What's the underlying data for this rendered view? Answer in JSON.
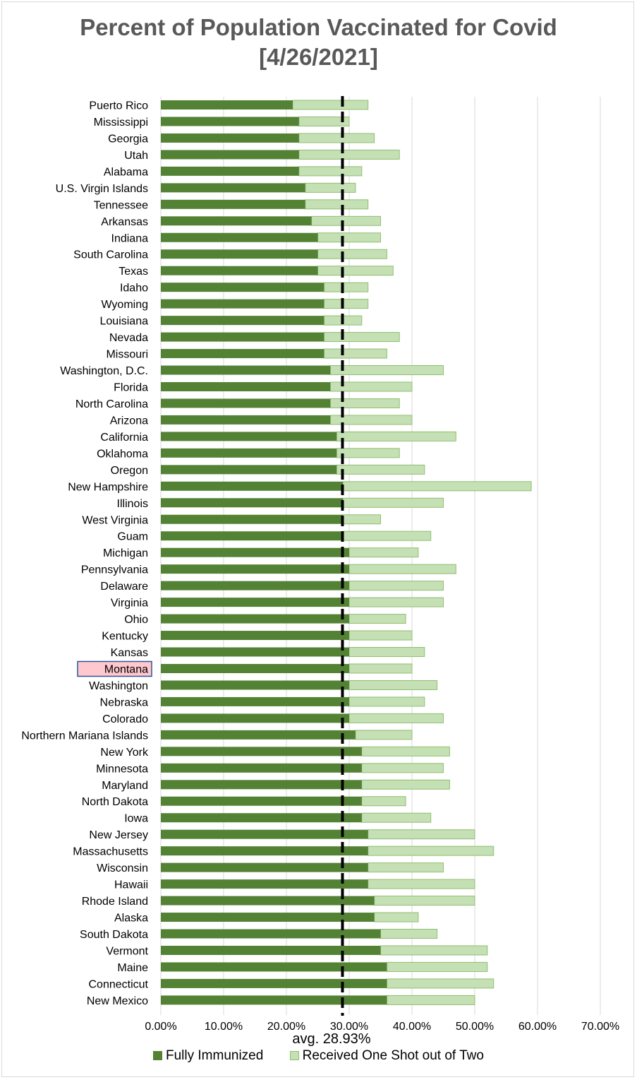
{
  "chart_data": {
    "type": "bar",
    "orientation": "horizontal",
    "stacked": true,
    "title_line1": "Percent of Population Vaccinated for Covid",
    "title_line2": "[4/26/2021]",
    "xlim": [
      0,
      70
    ],
    "x_ticks": [
      "0.00%",
      "10.00%",
      "20.00%",
      "30.00%",
      "40.00%",
      "50.00%",
      "60.00%",
      "70.00%"
    ],
    "x_tick_values": [
      0,
      10,
      20,
      30,
      40,
      50,
      60,
      70
    ],
    "grid": true,
    "legend_position": "bottom",
    "colors": {
      "fully": "#548235",
      "one_shot": "#c5e0b4",
      "one_shot_border": "#8fbf72",
      "highlight_fill": "#ffc7ce",
      "highlight_border": "#2f5597"
    },
    "average": {
      "value": 28.93,
      "label": "avg. 28.93%"
    },
    "highlight": "Montana",
    "series": [
      {
        "name": "Fully Immunized"
      },
      {
        "name": "Received One Shot out of Two"
      }
    ],
    "categories": [
      "Puerto Rico",
      "Mississippi",
      "Georgia",
      "Utah",
      "Alabama",
      "U.S. Virgin Islands",
      "Tennessee",
      "Arkansas",
      "Indiana",
      "South Carolina",
      "Texas",
      "Idaho",
      "Wyoming",
      "Louisiana",
      "Nevada",
      "Missouri",
      "Washington, D.C.",
      "Florida",
      "North Carolina",
      "Arizona",
      "California",
      "Oklahoma",
      "Oregon",
      "New Hampshire",
      "Illinois",
      "West Virginia",
      "Guam",
      "Michigan",
      "Pennsylvania",
      "Delaware",
      "Virginia",
      "Ohio",
      "Kentucky",
      "Kansas",
      "Montana",
      "Washington",
      "Nebraska",
      "Colorado",
      "Northern Mariana Islands",
      "New York",
      "Minnesota",
      "Maryland",
      "North Dakota",
      "Iowa",
      "New Jersey",
      "Massachusetts",
      "Wisconsin",
      "Hawaii",
      "Rhode Island",
      "Alaska",
      "South Dakota",
      "Vermont",
      "Maine",
      "Connecticut",
      "New Mexico"
    ],
    "fully": [
      21,
      22,
      22,
      22,
      22,
      23,
      23,
      24,
      25,
      25,
      25,
      26,
      26,
      26,
      26,
      26,
      27,
      27,
      27,
      27,
      28,
      28,
      28,
      29,
      29,
      29,
      29,
      30,
      30,
      30,
      30,
      30,
      30,
      30,
      30,
      30,
      30,
      30,
      31,
      32,
      32,
      32,
      32,
      32,
      33,
      33,
      33,
      33,
      34,
      34,
      35,
      35,
      36,
      36,
      36
    ],
    "total_at_least_one": [
      33,
      30,
      34,
      38,
      32,
      31,
      33,
      35,
      35,
      36,
      37,
      33,
      33,
      32,
      38,
      36,
      45,
      40,
      38,
      40,
      47,
      38,
      42,
      59,
      45,
      35,
      43,
      41,
      47,
      45,
      45,
      39,
      40,
      42,
      40,
      44,
      42,
      45,
      40,
      46,
      45,
      46,
      39,
      43,
      50,
      53,
      45,
      50,
      50,
      41,
      44,
      52,
      52,
      53,
      50
    ]
  }
}
